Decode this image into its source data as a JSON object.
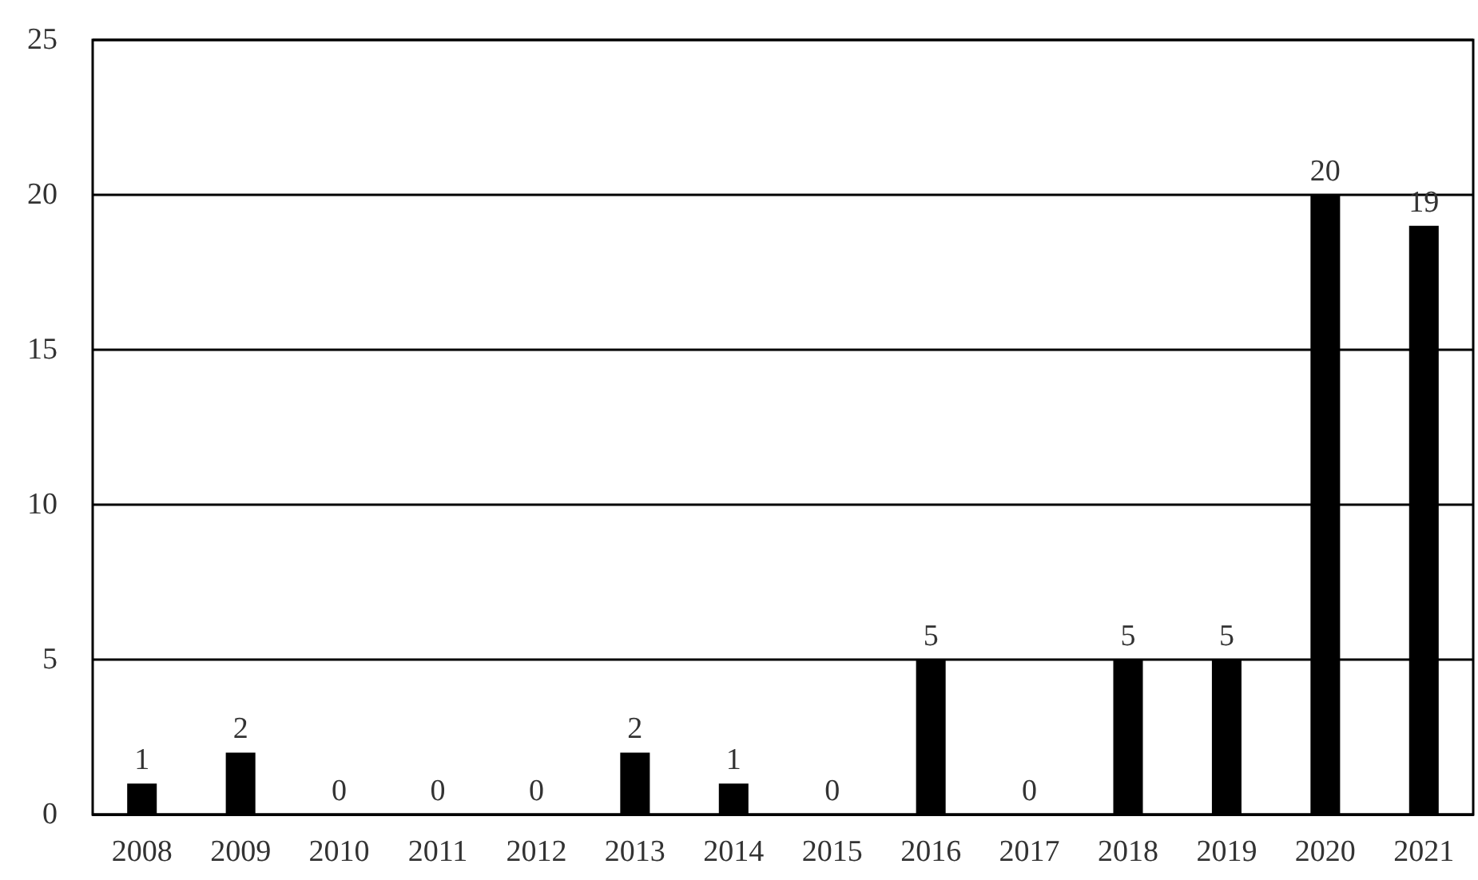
{
  "chart_data": {
    "type": "bar",
    "categories": [
      "2008",
      "2009",
      "2010",
      "2011",
      "2012",
      "2013",
      "2014",
      "2015",
      "2016",
      "2017",
      "2018",
      "2019",
      "2020",
      "2021"
    ],
    "values": [
      1,
      2,
      0,
      0,
      0,
      2,
      1,
      0,
      5,
      0,
      5,
      5,
      20,
      19
    ],
    "color": "#000000",
    "ylim": [
      0,
      25
    ],
    "yticks": [
      0,
      5,
      10,
      15,
      20,
      25
    ],
    "grid": "y",
    "data_labels": true
  }
}
